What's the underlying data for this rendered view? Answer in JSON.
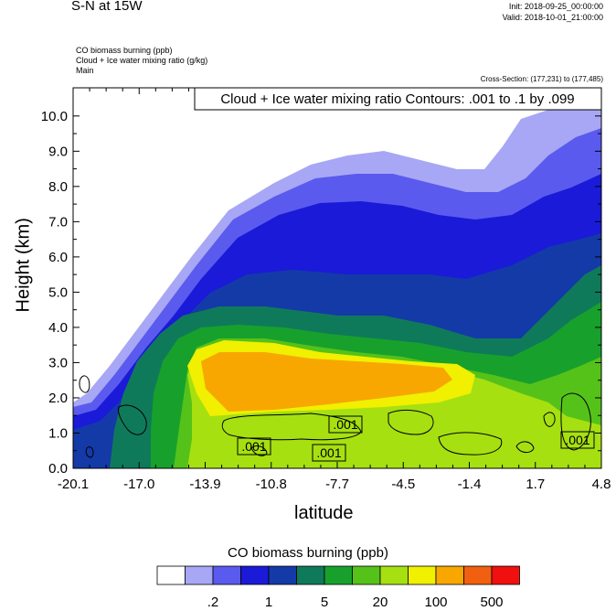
{
  "header": {
    "title": "S-N at 15W",
    "init": "Init: 2018-09-25_00:00:00",
    "valid": "Valid: 2018-10-01_21:00:00",
    "fields": [
      "CO biomass burning   (ppb)",
      "Cloud + Ice water mixing ratio   (g/kg)",
      "Main"
    ],
    "cross_section": "Cross-Section: (177,231) to (177,485)"
  },
  "chart_data": {
    "type": "heatmap",
    "xlabel": "latitude",
    "ylabel": "Height (km)",
    "x_ticks": [
      "-20.1",
      "-17.0",
      "-13.9",
      "-10.8",
      "-7.7",
      "-4.5",
      "-1.4",
      "1.7",
      "4.8"
    ],
    "y_ticks": [
      "0.0",
      "1.0",
      "2.0",
      "3.0",
      "4.0",
      "5.0",
      "6.0",
      "7.0",
      "8.0",
      "9.0",
      "10.0"
    ],
    "xlim": [
      -20.1,
      4.8
    ],
    "ylim": [
      0,
      10.8
    ],
    "contour_title": "Cloud + Ice water mixing ratio Contours: .001 to .1 by .099",
    "contour_labels": [
      ".001",
      ".001",
      ".001",
      ".001"
    ],
    "colorbar": {
      "title": "CO biomass burning  (ppb)",
      "labels": [
        ".2",
        "1",
        "5",
        "20",
        "100",
        "500"
      ],
      "colors": [
        "#ffffff",
        "#a7a7f5",
        "#5a5aee",
        "#1a1ad8",
        "#143aa8",
        "#0f7a5a",
        "#17a12c",
        "#55c21a",
        "#a6e010",
        "#f0f000",
        "#f8a700",
        "#f06010",
        "#f01010"
      ]
    }
  }
}
